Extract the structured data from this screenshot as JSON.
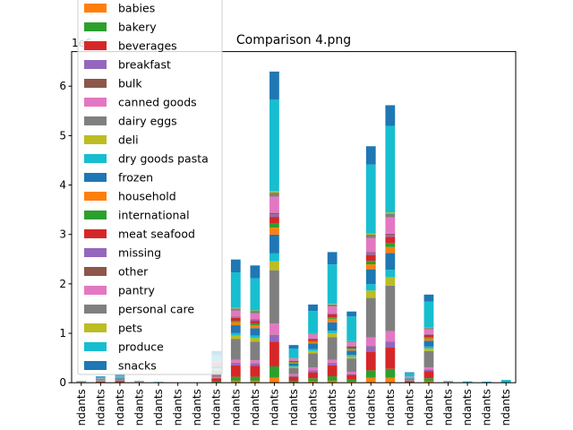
{
  "chart_data": {
    "type": "bar",
    "stacked": true,
    "title": "Comparison 4.png",
    "axis_offset_label": "1e6",
    "xlabel": "",
    "ylabel": "",
    "ylim": [
      0,
      6.7
    ],
    "yticks": [
      "0",
      "1",
      "2",
      "3",
      "4",
      "5",
      "6"
    ],
    "categories": [
      "ndants",
      "ndants",
      "ndants",
      "ndants",
      "ndants",
      "ndants",
      "ndants",
      "ndants",
      "ndants",
      "ndants",
      "ndants",
      "ndants",
      "ndants",
      "ndants",
      "ndants",
      "ndants",
      "ndants",
      "ndants",
      "ndants",
      "ndants",
      "ndants",
      "ndants",
      "ndants"
    ],
    "legend_position": "top-left",
    "colors": {
      "babies": "#ff7f0e",
      "bakery": "#2ca02c",
      "beverages": "#d62728",
      "breakfast": "#9467bd",
      "bulk": "#8c564b",
      "canned goods": "#e377c2",
      "dairy eggs": "#7f7f7f",
      "deli": "#bcbd22",
      "dry goods pasta": "#17becf",
      "frozen": "#1f77b4",
      "household": "#ff7f0e",
      "international": "#2ca02c",
      "meat seafood": "#d62728",
      "missing": "#9467bd",
      "other": "#8c564b",
      "pantry": "#e377c2",
      "personal care": "#7f7f7f",
      "pets": "#bcbd22",
      "produce": "#17becf",
      "snacks": "#1f77b4"
    },
    "series": [
      {
        "name": "babies",
        "values": [
          0.003,
          0.004,
          0.005,
          0.001,
          0.001,
          0,
          0,
          0.01,
          0.04,
          0.04,
          0.1,
          0.01,
          0.03,
          0.04,
          0.02,
          0.1,
          0.1,
          0.004,
          0.03,
          0.001,
          0,
          0,
          0
        ]
      },
      {
        "name": "bakery",
        "values": [
          0.002,
          0.006,
          0.006,
          0.002,
          0.001,
          0,
          0,
          0.02,
          0.08,
          0.08,
          0.23,
          0.03,
          0.06,
          0.09,
          0.04,
          0.15,
          0.18,
          0.009,
          0.06,
          0.001,
          0.001,
          0,
          0
        ]
      },
      {
        "name": "beverages",
        "values": [
          0.004,
          0.015,
          0.025,
          0.004,
          0.002,
          0,
          0,
          0.06,
          0.23,
          0.22,
          0.5,
          0.08,
          0.12,
          0.22,
          0.1,
          0.37,
          0.43,
          0.02,
          0.14,
          0.003,
          0.002,
          0,
          0
        ]
      },
      {
        "name": "breakfast",
        "values": [
          0.001,
          0.004,
          0.004,
          0.001,
          0.001,
          0,
          0,
          0.01,
          0.05,
          0.05,
          0.14,
          0.02,
          0.04,
          0.05,
          0.02,
          0.12,
          0.12,
          0.005,
          0.04,
          0.001,
          0.001,
          0,
          0
        ]
      },
      {
        "name": "bulk",
        "values": [
          0,
          0,
          0,
          0,
          0,
          0,
          0,
          0.001,
          0.003,
          0.003,
          0.006,
          0.001,
          0.002,
          0.003,
          0.001,
          0.005,
          0.005,
          0,
          0.001,
          0,
          0,
          0,
          0
        ]
      },
      {
        "name": "canned goods",
        "values": [
          0.001,
          0.004,
          0.006,
          0.001,
          0.001,
          0,
          0,
          0.02,
          0.06,
          0.06,
          0.22,
          0.03,
          0.06,
          0.06,
          0.04,
          0.17,
          0.21,
          0.008,
          0.04,
          0.001,
          0.001,
          0,
          0
        ]
      },
      {
        "name": "dairy eggs",
        "values": [
          0.005,
          0.02,
          0.03,
          0.005,
          0.002,
          0,
          0,
          0.13,
          0.42,
          0.38,
          1.08,
          0.13,
          0.28,
          0.46,
          0.27,
          0.8,
          0.92,
          0.03,
          0.33,
          0.005,
          0.002,
          0,
          0
        ]
      },
      {
        "name": "deli",
        "values": [
          0.001,
          0.003,
          0.004,
          0.001,
          0,
          0,
          0,
          0.02,
          0.07,
          0.07,
          0.18,
          0.02,
          0.05,
          0.08,
          0.04,
          0.15,
          0.17,
          0.005,
          0.05,
          0.001,
          0,
          0,
          0
        ]
      },
      {
        "name": "dry goods pasta",
        "values": [
          0.001,
          0.003,
          0.004,
          0.001,
          0,
          0,
          0,
          0.02,
          0.05,
          0.05,
          0.16,
          0.02,
          0.04,
          0.05,
          0.03,
          0.13,
          0.15,
          0.005,
          0.04,
          0.001,
          0,
          0,
          0
        ]
      },
      {
        "name": "frozen",
        "values": [
          0.002,
          0.008,
          0.01,
          0.002,
          0.001,
          0,
          0,
          0.05,
          0.16,
          0.15,
          0.38,
          0.05,
          0.11,
          0.17,
          0.09,
          0.3,
          0.34,
          0.01,
          0.12,
          0.002,
          0.001,
          0,
          0
        ]
      },
      {
        "name": "household",
        "values": [
          0.001,
          0.004,
          0.006,
          0.001,
          0,
          0,
          0,
          0.02,
          0.06,
          0.06,
          0.14,
          0.02,
          0.03,
          0.07,
          0.03,
          0.1,
          0.12,
          0.005,
          0.05,
          0.001,
          0,
          0,
          0
        ]
      },
      {
        "name": "international",
        "values": [
          0.001,
          0.002,
          0.003,
          0,
          0,
          0,
          0,
          0.01,
          0.03,
          0.03,
          0.08,
          0.01,
          0.02,
          0.03,
          0.02,
          0.07,
          0.08,
          0.003,
          0.02,
          0,
          0,
          0,
          0
        ]
      },
      {
        "name": "meat seafood",
        "values": [
          0.001,
          0.004,
          0.005,
          0.001,
          0,
          0,
          0,
          0.02,
          0.06,
          0.06,
          0.14,
          0.02,
          0.04,
          0.06,
          0.03,
          0.12,
          0.13,
          0.004,
          0.05,
          0.001,
          0,
          0,
          0
        ]
      },
      {
        "name": "missing",
        "values": [
          0,
          0.001,
          0.002,
          0,
          0,
          0,
          0,
          0.005,
          0.02,
          0.02,
          0.05,
          0.005,
          0.01,
          0.02,
          0.01,
          0.04,
          0.04,
          0.001,
          0.01,
          0,
          0,
          0,
          0
        ]
      },
      {
        "name": "other",
        "values": [
          0,
          0.001,
          0.001,
          0,
          0,
          0,
          0,
          0.003,
          0.01,
          0.01,
          0.03,
          0.003,
          0.005,
          0.01,
          0.005,
          0.02,
          0.02,
          0.001,
          0.006,
          0,
          0,
          0,
          0
        ]
      },
      {
        "name": "pantry",
        "values": [
          0.002,
          0.006,
          0.008,
          0.002,
          0.001,
          0,
          0,
          0.03,
          0.12,
          0.12,
          0.33,
          0.04,
          0.08,
          0.13,
          0.07,
          0.28,
          0.33,
          0.012,
          0.09,
          0.002,
          0.001,
          0,
          0
        ]
      },
      {
        "name": "personal care",
        "values": [
          0.001,
          0.003,
          0.004,
          0.001,
          0,
          0,
          0,
          0.01,
          0.04,
          0.05,
          0.08,
          0.01,
          0.02,
          0.04,
          0.02,
          0.07,
          0.08,
          0.003,
          0.03,
          0.001,
          0,
          0,
          0
        ]
      },
      {
        "name": "pets",
        "values": [
          0,
          0.001,
          0.001,
          0,
          0,
          0,
          0,
          0.003,
          0.01,
          0.01,
          0.03,
          0.003,
          0.005,
          0.01,
          0.005,
          0.02,
          0.02,
          0.001,
          0.006,
          0,
          0,
          0,
          0
        ]
      },
      {
        "name": "produce",
        "values": [
          0.006,
          0.03,
          0.04,
          0.008,
          0.005,
          0,
          0,
          0.11,
          0.72,
          0.65,
          1.85,
          0.19,
          0.45,
          0.8,
          0.5,
          1.4,
          1.75,
          0.07,
          0.53,
          0.01,
          0.015,
          0.02,
          0.055
        ]
      },
      {
        "name": "snacks",
        "values": [
          0.002,
          0.01,
          0.015,
          0.003,
          0.002,
          0,
          0,
          0.09,
          0.26,
          0.26,
          0.57,
          0.07,
          0.13,
          0.25,
          0.1,
          0.37,
          0.42,
          0.015,
          0.14,
          0.002,
          0.002,
          0.001,
          0.002
        ]
      }
    ]
  }
}
